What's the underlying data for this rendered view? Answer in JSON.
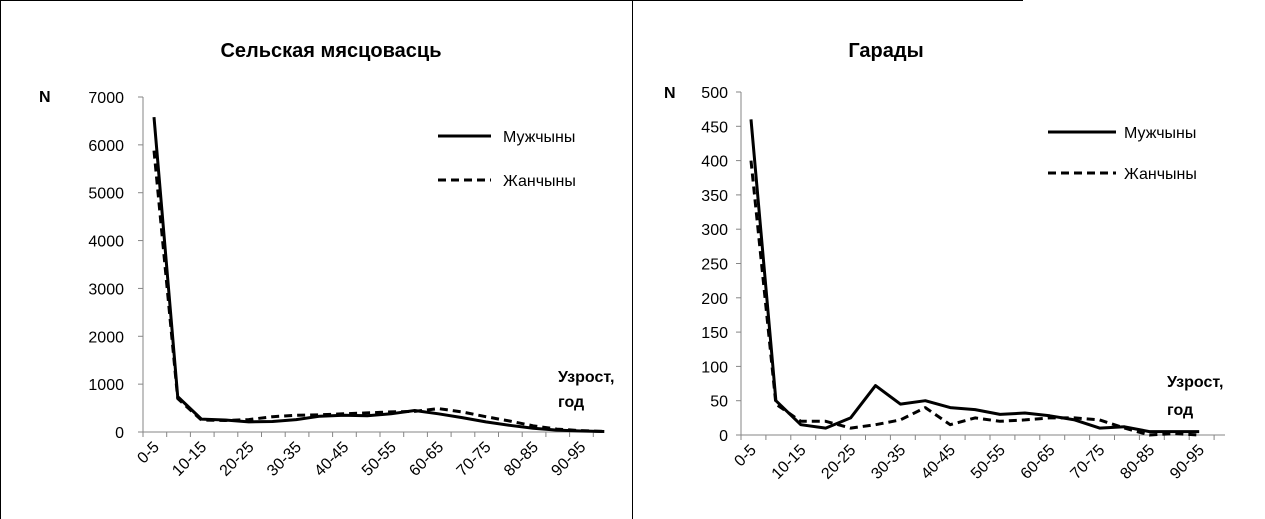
{
  "chart_data": [
    {
      "type": "line",
      "title": "Сельская мясцовасць",
      "ylabel": "N",
      "xlabel_line1": "Узрост,",
      "xlabel_line2": "год",
      "ylim": [
        0,
        7000
      ],
      "yticks": [
        0,
        1000,
        2000,
        3000,
        4000,
        5000,
        6000,
        7000
      ],
      "tick_labels": [
        "0-5",
        "10-15",
        "20-25",
        "30-35",
        "40-45",
        "50-55",
        "60-65",
        "70-75",
        "80-85",
        "90-95"
      ],
      "categories": [
        "0-5",
        "5-10",
        "10-15",
        "15-20",
        "20-25",
        "25-30",
        "30-35",
        "35-40",
        "40-45",
        "45-50",
        "50-55",
        "55-60",
        "60-65",
        "65-70",
        "70-75",
        "75-80",
        "80-85",
        "85-90",
        "90-95",
        "95-100"
      ],
      "grid": false,
      "legend": "top-right",
      "series": [
        {
          "name": "Мужчыны",
          "style": "solid",
          "values": [
            6580,
            740,
            270,
            250,
            210,
            220,
            260,
            330,
            350,
            340,
            380,
            450,
            380,
            300,
            210,
            140,
            80,
            40,
            20,
            10
          ]
        },
        {
          "name": "Жанчыны",
          "style": "dashed",
          "values": [
            5880,
            700,
            250,
            240,
            260,
            320,
            350,
            360,
            380,
            400,
            420,
            430,
            490,
            420,
            320,
            230,
            130,
            60,
            30,
            10
          ]
        }
      ]
    },
    {
      "type": "line",
      "title": "Гарады",
      "ylabel": "N",
      "xlabel_line1": "Узрост,",
      "xlabel_line2": "год",
      "ylim": [
        0,
        500
      ],
      "yticks": [
        0,
        50,
        100,
        150,
        200,
        250,
        300,
        350,
        400,
        450,
        500
      ],
      "tick_labels": [
        "0-5",
        "10-15",
        "20-25",
        "30-35",
        "40-45",
        "50-55",
        "60-65",
        "70-75",
        "80-85",
        "90-95"
      ],
      "categories": [
        "0-5",
        "5-10",
        "10-15",
        "15-20",
        "20-25",
        "25-30",
        "30-35",
        "35-40",
        "40-45",
        "45-50",
        "50-55",
        "55-60",
        "60-65",
        "65-70",
        "70-75",
        "75-80",
        "80-85",
        "85-90",
        "90-95"
      ],
      "grid": false,
      "legend": "top-right",
      "series": [
        {
          "name": "Мужчыны",
          "style": "solid",
          "values": [
            460,
            50,
            15,
            10,
            25,
            72,
            45,
            50,
            40,
            37,
            30,
            32,
            28,
            22,
            10,
            12,
            5,
            5,
            5
          ]
        },
        {
          "name": "Жанчыны",
          "style": "dashed",
          "values": [
            400,
            45,
            20,
            20,
            10,
            15,
            22,
            40,
            15,
            25,
            20,
            22,
            25,
            25,
            22,
            10,
            0,
            2,
            0
          ]
        }
      ]
    }
  ]
}
